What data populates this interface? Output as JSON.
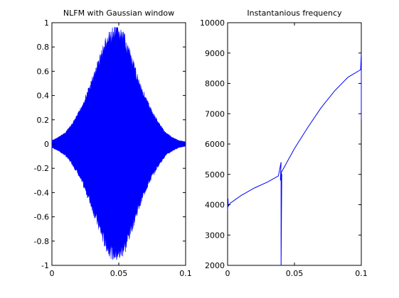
{
  "colors": {
    "signal": "#0000ff",
    "axes": "#000000",
    "background": "#ffffff"
  },
  "chart_data": [
    {
      "type": "line",
      "title": "NLFM with Gaussian window",
      "xlabel": "",
      "ylabel": "",
      "xlim": [
        0,
        0.1
      ],
      "ylim": [
        -1,
        1
      ],
      "xticks": [
        0,
        0.05,
        0.1
      ],
      "xtick_labels": [
        "0",
        "0.05",
        "0.1"
      ],
      "yticks": [
        -1,
        -0.8,
        -0.6,
        -0.4,
        -0.2,
        0,
        0.2,
        0.4,
        0.6,
        0.8,
        1
      ],
      "ytick_labels": [
        "-1",
        "-0.8",
        "-0.6",
        "-0.4",
        "-0.2",
        "0",
        "0.2",
        "0.4",
        "0.6",
        "0.8",
        "1"
      ],
      "grid": false,
      "series": [
        {
          "style": "filled-oscillation",
          "envelope_x": [
            0,
            0.005,
            0.01,
            0.015,
            0.02,
            0.025,
            0.03,
            0.035,
            0.04,
            0.045,
            0.05,
            0.055,
            0.06,
            0.065,
            0.07,
            0.075,
            0.08,
            0.085,
            0.09,
            0.095,
            0.1
          ],
          "envelope_y": [
            0.03,
            0.06,
            0.1,
            0.17,
            0.27,
            0.4,
            0.55,
            0.72,
            0.88,
            0.96,
            0.98,
            0.9,
            0.72,
            0.55,
            0.4,
            0.28,
            0.18,
            0.1,
            0.06,
            0.03,
            0.02
          ]
        }
      ]
    },
    {
      "type": "line",
      "title": "Instantanious frequency",
      "xlabel": "",
      "ylabel": "",
      "xlim": [
        0,
        0.1
      ],
      "ylim": [
        2000,
        10000
      ],
      "xticks": [
        0,
        0.05,
        0.1
      ],
      "xtick_labels": [
        "0",
        "0.05",
        "0.1"
      ],
      "yticks": [
        2000,
        3000,
        4000,
        5000,
        6000,
        7000,
        8000,
        9000,
        10000
      ],
      "ytick_labels": [
        "2000",
        "3000",
        "4000",
        "5000",
        "6000",
        "7000",
        "8000",
        "9000",
        "10000"
      ],
      "grid": false,
      "series": [
        {
          "x": [
            0,
            0.0003,
            0.0005,
            0.002,
            0.01,
            0.02,
            0.03,
            0.038,
            0.04,
            0.0395,
            0.04,
            0.04,
            0.0405,
            0.04,
            0.05,
            0.06,
            0.07,
            0.08,
            0.09,
            0.0995,
            0.1,
            0.1,
            0.1
          ],
          "y": [
            3800,
            4200,
            3950,
            4050,
            4300,
            4550,
            4750,
            4950,
            5400,
            4800,
            5100,
            2000,
            5000,
            5050,
            5850,
            6550,
            7200,
            7750,
            8200,
            8450,
            9000,
            6800,
            8400
          ]
        }
      ]
    }
  ]
}
